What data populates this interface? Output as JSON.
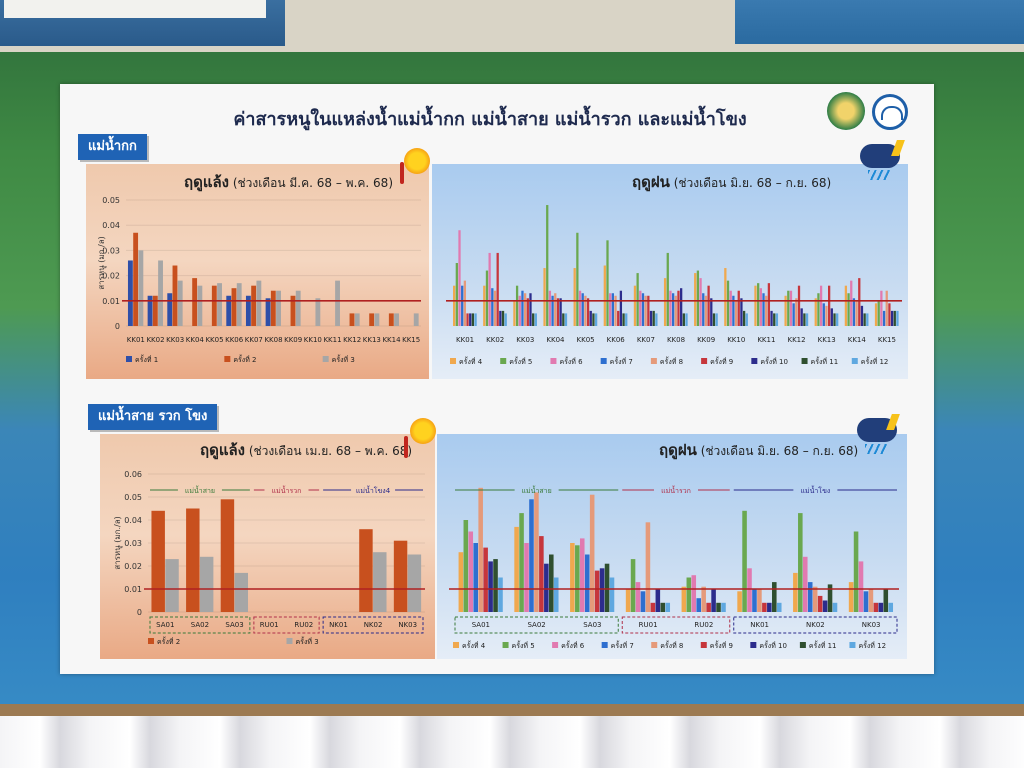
{
  "board": {
    "title": "ค่าสารหนูในแหล่งน้ำแม่น้ำกก แม่น้ำสาย แม่น้ำรวก และแม่น้ำโขง",
    "section1_tag": "แม่น้ำกก",
    "section2_tag": "แม่น้ำสาย รวก โขง"
  },
  "panels": {
    "p1": {
      "season": "ฤดูแล้ง",
      "period": "(ช่วงเดือน มี.ค. 68 – พ.ค. 68)"
    },
    "p2": {
      "season": "ฤดูฝน",
      "period": "(ช่วงเดือน มิ.ย. 68 – ก.ย. 68)"
    },
    "p3": {
      "season": "ฤดูแล้ง",
      "period": "(ช่วงเดือน เม.ย. 68 – พ.ค. 68)"
    },
    "p4": {
      "season": "ฤดูฝน",
      "period": "(ช่วงเดือน มิ.ย. 68 – ก.ย. 68)"
    }
  },
  "colors": {
    "s1": "#2f4fa8",
    "s2": "#c8501e",
    "s3": "#a6a6a6",
    "s4": "#f0a84e",
    "s5": "#6aa84f",
    "s6": "#e17ab0",
    "s7": "#2e6fd0",
    "s8": "#e59a7a",
    "s9": "#c6363c",
    "s10": "#2c2c8c",
    "s11": "#2f4f2f",
    "s12": "#5fa8e0",
    "standard": "#b02020"
  },
  "chart_data": [
    {
      "type": "bar",
      "ylabel": "สารหนู (มก./ล)",
      "ylim": [
        0,
        0.05
      ],
      "yticks": [
        "0",
        "0.01",
        "0.02",
        "0.03",
        "0.04",
        "0.05"
      ],
      "standard_line": 0.01,
      "categories": [
        "KK01",
        "KK02",
        "KK03",
        "KK04",
        "KK05",
        "KK06",
        "KK07",
        "KK08",
        "KK09",
        "KK10",
        "KK11",
        "KK12",
        "KK13",
        "KK14",
        "KK15"
      ],
      "series": [
        {
          "name": "ครั้งที่ 1",
          "color": "s1",
          "values": [
            0.026,
            0.012,
            0.013,
            0.0,
            0.0,
            0.012,
            0.012,
            0.011,
            0,
            0,
            0,
            0,
            0,
            0,
            0
          ]
        },
        {
          "name": "ครั้งที่ 2",
          "color": "s2",
          "values": [
            0.037,
            0.012,
            0.024,
            0.019,
            0.016,
            0.015,
            0.016,
            0.014,
            0.012,
            0,
            0,
            0.005,
            0.005,
            0.005,
            0
          ]
        },
        {
          "name": "ครั้งที่ 3",
          "color": "s3",
          "values": [
            0.03,
            0.026,
            0.018,
            0.016,
            0.017,
            0.017,
            0.018,
            0.014,
            0.014,
            0.011,
            0.018,
            0.005,
            0.005,
            0.005,
            0.005
          ]
        }
      ]
    },
    {
      "type": "bar",
      "ylim": [
        0,
        0.05
      ],
      "standard_line": 0.01,
      "categories": [
        "KK01",
        "KK02",
        "KK03",
        "KK04",
        "KK05",
        "KK06",
        "KK07",
        "KK08",
        "KK09",
        "KK10",
        "KK11",
        "KK12",
        "KK13",
        "KK14",
        "KK15"
      ],
      "series": [
        {
          "name": "ครั้งที่ 4",
          "color": "s4",
          "values": [
            0.016,
            0.016,
            0.01,
            0.023,
            0.023,
            0.024,
            0.016,
            0.019,
            0.021,
            0.023,
            0.016,
            0.012,
            0.011,
            0.016,
            0.009
          ]
        },
        {
          "name": "ครั้งที่ 5",
          "color": "s5",
          "values": [
            0.025,
            0.022,
            0.016,
            0.048,
            0.037,
            0.034,
            0.021,
            0.029,
            0.022,
            0.018,
            0.017,
            0.014,
            0.013,
            0.013,
            0.01
          ]
        },
        {
          "name": "ครั้งที่ 6",
          "color": "s6",
          "values": [
            0.038,
            0.029,
            0.012,
            0.014,
            0.014,
            0.013,
            0.014,
            0.014,
            0.019,
            0.014,
            0.015,
            0.014,
            0.016,
            0.018,
            0.014
          ]
        },
        {
          "name": "ครั้งที่ 7",
          "color": "s7",
          "values": [
            0.016,
            0.015,
            0.014,
            0.012,
            0.013,
            0.013,
            0.013,
            0.013,
            0.013,
            0.012,
            0.013,
            0.009,
            0.009,
            0.011,
            0.006
          ]
        },
        {
          "name": "ครั้งที่ 8",
          "color": "s8",
          "values": [
            0.018,
            0.014,
            0.013,
            0.013,
            0.012,
            0.012,
            0.012,
            0.012,
            0.012,
            0.01,
            0.012,
            0.011,
            0.008,
            0.01,
            0.014
          ]
        },
        {
          "name": "ครั้งที่ 9",
          "color": "s9",
          "values": [
            0.005,
            0.029,
            0.011,
            0.011,
            0.011,
            0.006,
            0.012,
            0.014,
            0.016,
            0.014,
            0.017,
            0.016,
            0.016,
            0.019,
            0.009
          ]
        },
        {
          "name": "ครั้งที่ 10",
          "color": "s10",
          "values": [
            0.005,
            0.006,
            0.013,
            0.011,
            0.006,
            0.014,
            0.006,
            0.015,
            0.011,
            0.011,
            0.006,
            0.007,
            0.007,
            0.008,
            0.006
          ]
        },
        {
          "name": "ครั้งที่ 11",
          "color": "s11",
          "values": [
            0.005,
            0.006,
            0.005,
            0.005,
            0.005,
            0.005,
            0.006,
            0.005,
            0.005,
            0.006,
            0.005,
            0.005,
            0.005,
            0.005,
            0.006
          ]
        },
        {
          "name": "ครั้งที่ 12",
          "color": "s12",
          "values": [
            0.005,
            0.005,
            0.005,
            0.005,
            0.005,
            0.005,
            0.005,
            0.005,
            0.005,
            0.005,
            0.005,
            0.005,
            0.005,
            0.005,
            0.006
          ]
        }
      ]
    },
    {
      "type": "bar",
      "ylabel": "สารหนู (มก./ล)",
      "ylim": [
        0,
        0.06
      ],
      "yticks": [
        "0",
        "0.01",
        "0.02",
        "0.03",
        "0.04",
        "0.05",
        "0.06"
      ],
      "standard_line": 0.01,
      "groups": [
        "แม่น้ำสาย",
        "แม่น้ำรวก",
        "แม่น้ำโขง4"
      ],
      "categories": [
        "SA01",
        "SA02",
        "SA03",
        "RU01",
        "RU02",
        "NK01",
        "NK02",
        "NK03"
      ],
      "series": [
        {
          "name": "ครั้งที่ 2",
          "color": "s2",
          "values": [
            0.044,
            0.045,
            0.049,
            0,
            0,
            0,
            0.036,
            0.031
          ]
        },
        {
          "name": "ครั้งที่ 3",
          "color": "s3",
          "values": [
            0.023,
            0.024,
            0.017,
            0,
            0,
            0,
            0.026,
            0.025
          ]
        }
      ]
    },
    {
      "type": "bar",
      "ylim": [
        0,
        0.06
      ],
      "standard_line": 0.01,
      "groups": [
        "แม่น้ำสาย",
        "แม่น้ำรวก",
        "แม่น้ำโขง"
      ],
      "categories": [
        "SA01",
        "SA02",
        "SA03",
        "RU01",
        "RU02",
        "NK01",
        "NK02",
        "NK03"
      ],
      "series": [
        {
          "name": "ครั้งที่ 4",
          "color": "s4",
          "values": [
            0.026,
            0.037,
            0.03,
            0.01,
            0.011,
            0.009,
            0.017,
            0.013
          ]
        },
        {
          "name": "ครั้งที่ 5",
          "color": "s5",
          "values": [
            0.04,
            0.043,
            0.029,
            0.023,
            0.015,
            0.044,
            0.043,
            0.035
          ]
        },
        {
          "name": "ครั้งที่ 6",
          "color": "s6",
          "values": [
            0.035,
            0.03,
            0.032,
            0.013,
            0.016,
            0.019,
            0.024,
            0.022
          ]
        },
        {
          "name": "ครั้งที่ 7",
          "color": "s7",
          "values": [
            0.03,
            0.049,
            0.025,
            0.009,
            0.006,
            0.01,
            0.013,
            0.009
          ]
        },
        {
          "name": "ครั้งที่ 8",
          "color": "s8",
          "values": [
            0.054,
            0.052,
            0.051,
            0.039,
            0.011,
            0.01,
            0.011,
            0.01
          ]
        },
        {
          "name": "ครั้งที่ 9",
          "color": "s9",
          "values": [
            0.028,
            0.033,
            0.018,
            0.004,
            0.004,
            0.004,
            0.007,
            0.004
          ]
        },
        {
          "name": "ครั้งที่ 10",
          "color": "s10",
          "values": [
            0.022,
            0.021,
            0.019,
            0.01,
            0.01,
            0.004,
            0.005,
            0.004
          ]
        },
        {
          "name": "ครั้งที่ 11",
          "color": "s11",
          "values": [
            0.023,
            0.025,
            0.021,
            0.004,
            0.004,
            0.013,
            0.012,
            0.01
          ]
        },
        {
          "name": "ครั้งที่ 12",
          "color": "s12",
          "values": [
            0.015,
            0.015,
            0.015,
            0.004,
            0.004,
            0.004,
            0.004,
            0.004
          ]
        }
      ]
    }
  ]
}
